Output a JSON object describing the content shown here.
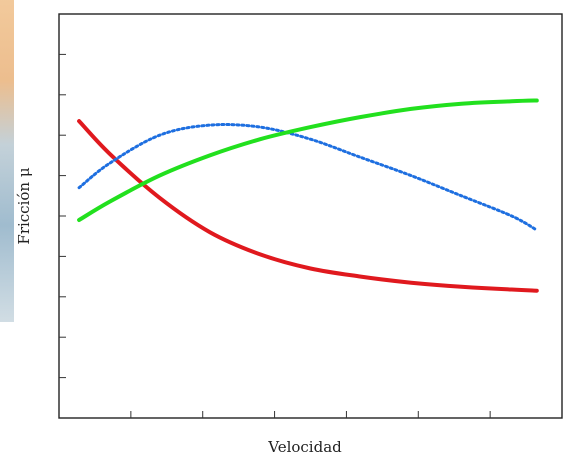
{
  "chart_data": {
    "type": "line",
    "xlabel": "Velocidad",
    "ylabel": "Fricción μ",
    "xlim": [
      0,
      1
    ],
    "ylim": [
      0,
      1
    ],
    "grid": false,
    "series": [
      {
        "color": "#e0191e",
        "style": "solid",
        "x": [
          0.04,
          0.1,
          0.2,
          0.3,
          0.4,
          0.5,
          0.6,
          0.7,
          0.8,
          0.9,
          0.95
        ],
        "y": [
          0.735,
          0.655,
          0.545,
          0.46,
          0.405,
          0.37,
          0.35,
          0.335,
          0.325,
          0.318,
          0.315
        ]
      },
      {
        "color": "#1e6fe0",
        "style": "dotted",
        "x": [
          0.04,
          0.1,
          0.2,
          0.3,
          0.4,
          0.5,
          0.6,
          0.7,
          0.8,
          0.9,
          0.95
        ],
        "y": [
          0.57,
          0.63,
          0.7,
          0.725,
          0.72,
          0.69,
          0.645,
          0.6,
          0.55,
          0.5,
          0.465
        ]
      },
      {
        "color": "#22e01e",
        "style": "solid",
        "x": [
          0.04,
          0.1,
          0.2,
          0.3,
          0.4,
          0.5,
          0.6,
          0.7,
          0.8,
          0.9,
          0.95
        ],
        "y": [
          0.49,
          0.535,
          0.6,
          0.65,
          0.69,
          0.72,
          0.745,
          0.765,
          0.778,
          0.784,
          0.786
        ]
      }
    ]
  }
}
